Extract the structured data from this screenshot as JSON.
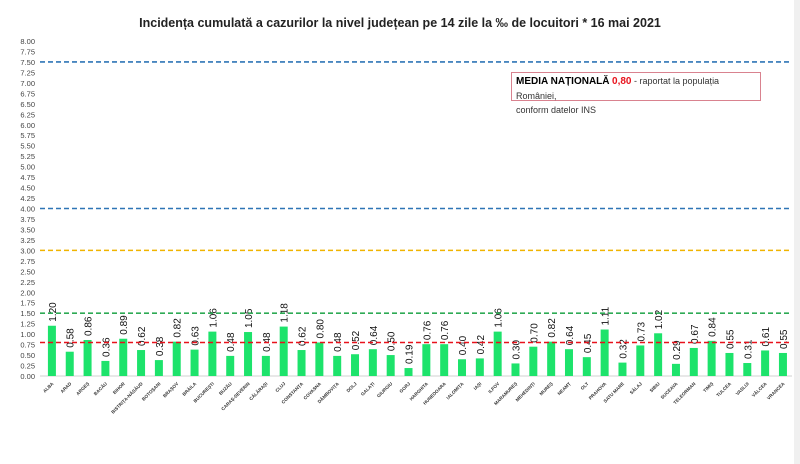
{
  "chart_data": {
    "type": "bar",
    "title": "Incidența cumulată a cazurilor la nivel județean pe 14 zile la ‰ de locuitori *  16 mai 2021",
    "xlabel": "",
    "ylabel": "",
    "ylim": [
      0,
      8
    ],
    "ytick_step": 0.25,
    "grid": false,
    "bar_color": "#1de36b",
    "categories": [
      "ALBA",
      "ARAD",
      "ARGEȘ",
      "BACĂU",
      "BIHOR",
      "BISTRIȚA-NĂSĂUD",
      "BOTOȘANI",
      "BRAȘOV",
      "BRĂILA",
      "BUCUREȘTI",
      "BUZĂU",
      "CARAȘ-SEVERIN",
      "CĂLĂRAȘI",
      "CLUJ",
      "CONSTANȚA",
      "COVASNA",
      "DÂMBOVIȚA",
      "DOLJ",
      "GALAȚI",
      "GIURGIU",
      "GORJ",
      "HARGHITA",
      "HUNEDOARA",
      "IALOMIȚA",
      "IAȘI",
      "ILFOV",
      "MARAMUREȘ",
      "MEHEDINȚI",
      "MUREȘ",
      "NEAMȚ",
      "OLT",
      "PRAHOVA",
      "SATU MARE",
      "SĂLAJ",
      "SIBIU",
      "SUCEAVA",
      "TELEORMAN",
      "TIMIȘ",
      "TULCEA",
      "VASLUI",
      "VÂLCEA",
      "VRANCEA"
    ],
    "values": [
      1.2,
      0.58,
      0.86,
      0.36,
      0.89,
      0.62,
      0.38,
      0.82,
      0.63,
      1.06,
      0.48,
      1.05,
      0.48,
      1.18,
      0.62,
      0.8,
      0.48,
      0.52,
      0.64,
      0.5,
      0.19,
      0.76,
      0.76,
      0.4,
      0.42,
      1.06,
      0.3,
      0.7,
      0.82,
      0.64,
      0.45,
      1.11,
      0.32,
      0.73,
      1.02,
      0.29,
      0.67,
      0.84,
      0.55,
      0.31,
      0.61,
      0.55
    ],
    "reference_lines": [
      {
        "value": 7.5,
        "color": "#2e75b6",
        "style": "dashed"
      },
      {
        "value": 4.0,
        "color": "#2e75b6",
        "style": "dashed"
      },
      {
        "value": 3.0,
        "color": "#f0b400",
        "style": "dashed"
      },
      {
        "value": 1.5,
        "color": "#2eaa55",
        "style": "dashed"
      },
      {
        "value": 0.8,
        "color": "#e8121c",
        "style": "dashed"
      }
    ],
    "annotation": {
      "label": "MEDIA NAȚIONALĂ",
      "value": "0,80",
      "text": "- raportat la populația României,",
      "text2": "conform datelor INS"
    }
  }
}
